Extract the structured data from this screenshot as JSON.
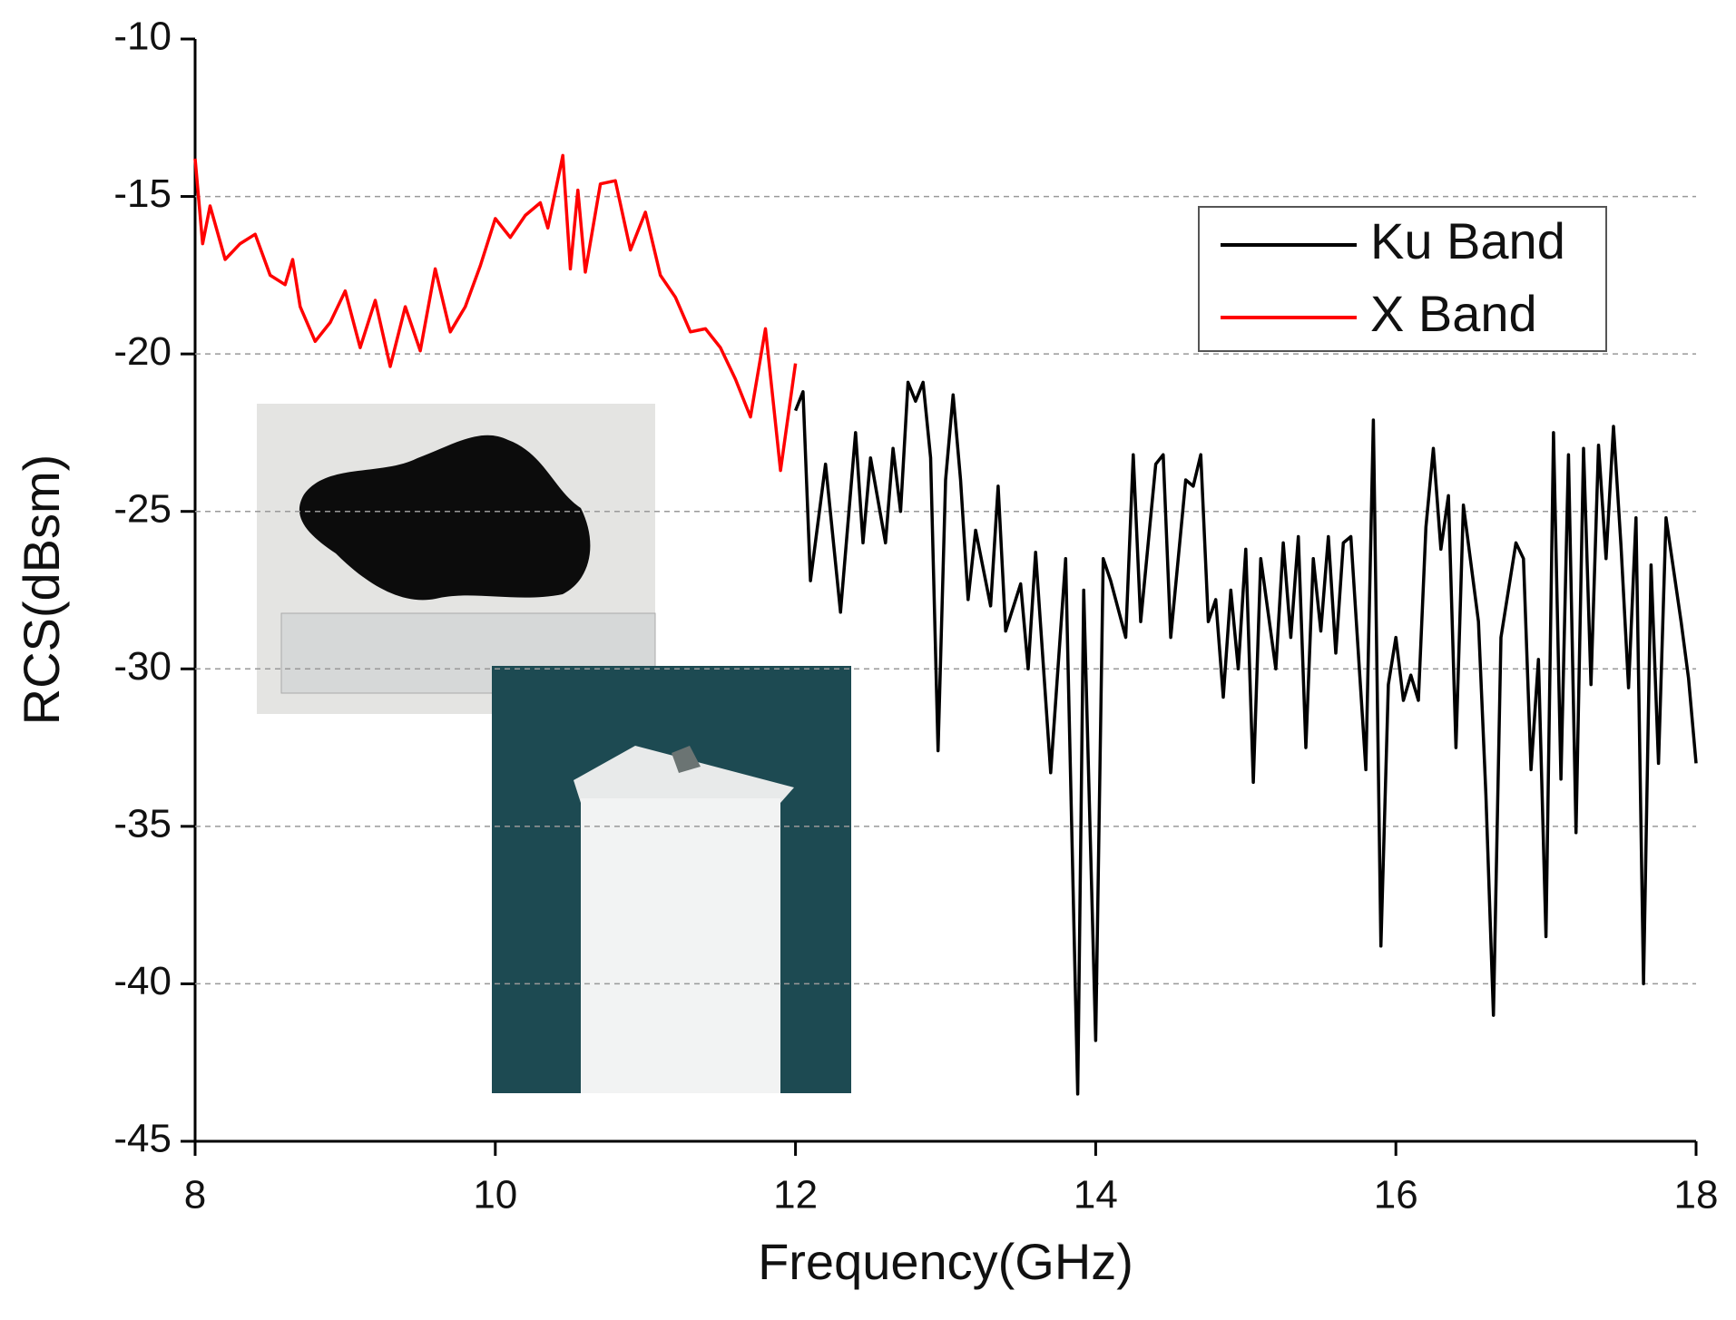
{
  "chart_data": {
    "type": "line",
    "xlabel": "Frequency(GHz)",
    "ylabel": "RCS(dBsm)",
    "xlim": [
      8,
      18
    ],
    "xticks": [
      8,
      10,
      12,
      14,
      16,
      18
    ],
    "ylim": [
      -45,
      -10
    ],
    "yticks": [
      -10,
      -15,
      -20,
      -25,
      -30,
      -35,
      -40,
      -45
    ],
    "grid": true,
    "legend": "upper right",
    "series": [
      {
        "name": "Ku Band",
        "color": "#000000",
        "x": [
          12.0,
          12.05,
          12.1,
          12.2,
          12.3,
          12.4,
          12.45,
          12.5,
          12.6,
          12.65,
          12.7,
          12.75,
          12.8,
          12.85,
          12.9,
          12.95,
          13.0,
          13.05,
          13.1,
          13.15,
          13.2,
          13.3,
          13.35,
          13.4,
          13.5,
          13.55,
          13.6,
          13.7,
          13.8,
          13.88,
          13.92,
          14.0,
          14.05,
          14.1,
          14.2,
          14.25,
          14.3,
          14.4,
          14.45,
          14.5,
          14.6,
          14.65,
          14.7,
          14.75,
          14.8,
          14.85,
          14.9,
          14.95,
          15.0,
          15.05,
          15.1,
          15.2,
          15.25,
          15.3,
          15.35,
          15.4,
          15.45,
          15.5,
          15.55,
          15.6,
          15.65,
          15.7,
          15.8,
          15.85,
          15.9,
          15.95,
          16.0,
          16.05,
          16.1,
          16.15,
          16.2,
          16.25,
          16.3,
          16.35,
          16.4,
          16.45,
          16.55,
          16.6,
          16.65,
          16.7,
          16.8,
          16.85,
          16.9,
          16.95,
          17.0,
          17.05,
          17.1,
          17.15,
          17.2,
          17.25,
          17.3,
          17.35,
          17.4,
          17.45,
          17.5,
          17.55,
          17.6,
          17.65,
          17.7,
          17.75,
          17.8,
          17.9,
          17.95,
          18.0
        ],
        "values": [
          -21.8,
          -21.2,
          -27.2,
          -23.5,
          -28.2,
          -22.5,
          -26,
          -23.3,
          -26,
          -23,
          -25,
          -20.9,
          -21.5,
          -20.9,
          -23.3,
          -32.6,
          -24,
          -21.3,
          -24,
          -27.8,
          -25.6,
          -28,
          -24.2,
          -28.8,
          -27.3,
          -30,
          -26.3,
          -33.3,
          -26.5,
          -43.5,
          -27.5,
          -41.8,
          -26.5,
          -27.2,
          -29,
          -23.2,
          -28.5,
          -23.5,
          -23.2,
          -29,
          -24,
          -24.2,
          -23.2,
          -28.5,
          -27.8,
          -30.9,
          -27.5,
          -30,
          -26.2,
          -33.6,
          -26.5,
          -30,
          -26,
          -29,
          -25.8,
          -32.5,
          -26.5,
          -28.8,
          -25.8,
          -29.5,
          -26,
          -25.8,
          -33.2,
          -22.1,
          -38.8,
          -30.5,
          -29,
          -31,
          -30.2,
          -31,
          -25.5,
          -23,
          -26.2,
          -24.5,
          -32.5,
          -24.8,
          -28.5,
          -34,
          -41,
          -29,
          -26,
          -26.5,
          -33.2,
          -29.7,
          -38.5,
          -22.5,
          -33.5,
          -23.2,
          -35.2,
          -23,
          -30.5,
          -22.9,
          -26.5,
          -22.3,
          -26.1,
          -30.6,
          -25.2,
          -40,
          -26.7,
          -33,
          -25.2,
          -28.5,
          -30.3,
          -33
        ]
      },
      {
        "name": "X Band",
        "color": "#ff0000",
        "x": [
          8.0,
          8.05,
          8.1,
          8.2,
          8.3,
          8.4,
          8.5,
          8.6,
          8.65,
          8.7,
          8.8,
          8.9,
          9.0,
          9.1,
          9.2,
          9.3,
          9.4,
          9.5,
          9.6,
          9.7,
          9.8,
          9.9,
          10.0,
          10.1,
          10.2,
          10.3,
          10.35,
          10.45,
          10.5,
          10.55,
          10.6,
          10.7,
          10.8,
          10.9,
          11.0,
          11.1,
          11.2,
          11.3,
          11.4,
          11.5,
          11.6,
          11.7,
          11.8,
          11.9,
          12.0
        ],
        "values": [
          -13.8,
          -16.5,
          -15.3,
          -17,
          -16.5,
          -16.2,
          -17.5,
          -17.8,
          -17,
          -18.5,
          -19.6,
          -19,
          -18,
          -19.8,
          -18.3,
          -20.4,
          -18.5,
          -19.9,
          -17.3,
          -19.3,
          -18.5,
          -17.2,
          -15.7,
          -16.3,
          -15.6,
          -15.2,
          -16,
          -13.7,
          -17.3,
          -14.8,
          -17.4,
          -14.6,
          -14.5,
          -16.7,
          -15.5,
          -17.5,
          -18.2,
          -19.3,
          -19.2,
          -19.8,
          -20.8,
          -22,
          -19.2,
          -23.7,
          -20.3
        ]
      }
    ]
  }
}
